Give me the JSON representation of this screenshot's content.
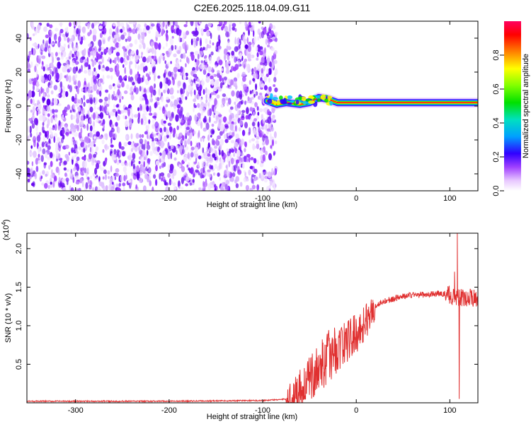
{
  "title": "C2E6.2025.118.04.09.G11",
  "chart_data": [
    {
      "type": "heatmap",
      "xlabel": "Height of straight line (km)",
      "ylabel": "Frequency (Hz)",
      "xlim": [
        -352,
        130
      ],
      "ylim": [
        -50,
        50
      ],
      "xticks": [
        -300,
        -200,
        -100,
        0,
        100
      ],
      "xtick_labels": [
        "-300",
        "-200",
        "-100",
        "0",
        "100"
      ],
      "yticks": [
        -40,
        -20,
        0,
        20,
        40
      ],
      "ytick_labels": [
        "-40",
        "-20",
        "0",
        "20",
        "40"
      ],
      "noise_region_x": [
        -352,
        -90
      ],
      "tone_path": [
        {
          "x": -95,
          "y": 3
        },
        {
          "x": -85,
          "y": 1
        },
        {
          "x": -75,
          "y": 2
        },
        {
          "x": -60,
          "y": 1
        },
        {
          "x": -50,
          "y": 2
        },
        {
          "x": -40,
          "y": 5
        },
        {
          "x": -30,
          "y": 4
        },
        {
          "x": -20,
          "y": 2
        },
        {
          "x": -10,
          "y": 2
        },
        {
          "x": 0,
          "y": 2
        },
        {
          "x": 50,
          "y": 2
        },
        {
          "x": 100,
          "y": 2
        },
        {
          "x": 130,
          "y": 2
        }
      ],
      "colorbar": {
        "label": "Normalized spectral amplitude",
        "range": [
          0,
          1
        ],
        "ticks": [
          0.0,
          0.2,
          0.4,
          0.6,
          0.8
        ],
        "tick_labels": [
          "0.0",
          "0.2",
          "0.4",
          "0.6",
          "0.8"
        ]
      }
    },
    {
      "type": "line",
      "xlabel": "Height of straight line (km)",
      "ylabel": "SNR (10 * v/v)",
      "scale_label": "(x10",
      "scale_exponent": "4",
      "xlim": [
        -352,
        130
      ],
      "ylim": [
        0,
        2.2
      ],
      "xticks": [
        -300,
        -200,
        -100,
        0,
        100
      ],
      "xtick_labels": [
        "-300",
        "-200",
        "-100",
        "0",
        "100"
      ],
      "yticks": [
        0.5,
        1.0,
        1.5,
        2.0
      ],
      "ytick_labels": [
        "0.5",
        "1.0",
        "1.5",
        "2.0"
      ],
      "color": "#e03030",
      "series": [
        {
          "x": [
            -352,
            -200,
            -100,
            -70,
            -60,
            -50,
            -40,
            -30,
            -20,
            -10,
            0,
            10,
            20,
            30,
            40,
            50,
            60,
            70,
            80,
            90,
            100,
            105,
            110,
            115,
            120,
            130
          ],
          "values": [
            0.02,
            0.02,
            0.03,
            0.05,
            0.2,
            0.3,
            0.45,
            0.6,
            0.7,
            0.8,
            0.9,
            1.05,
            1.25,
            1.32,
            1.35,
            1.38,
            1.4,
            1.4,
            1.41,
            1.42,
            1.4,
            1.38,
            1.35,
            1.37,
            1.36,
            1.36
          ]
        }
      ],
      "spikes": [
        {
          "x": 105,
          "y": 1.7
        },
        {
          "x": 108,
          "y": 2.2
        },
        {
          "x": 110,
          "y": 0.05
        }
      ]
    }
  ]
}
